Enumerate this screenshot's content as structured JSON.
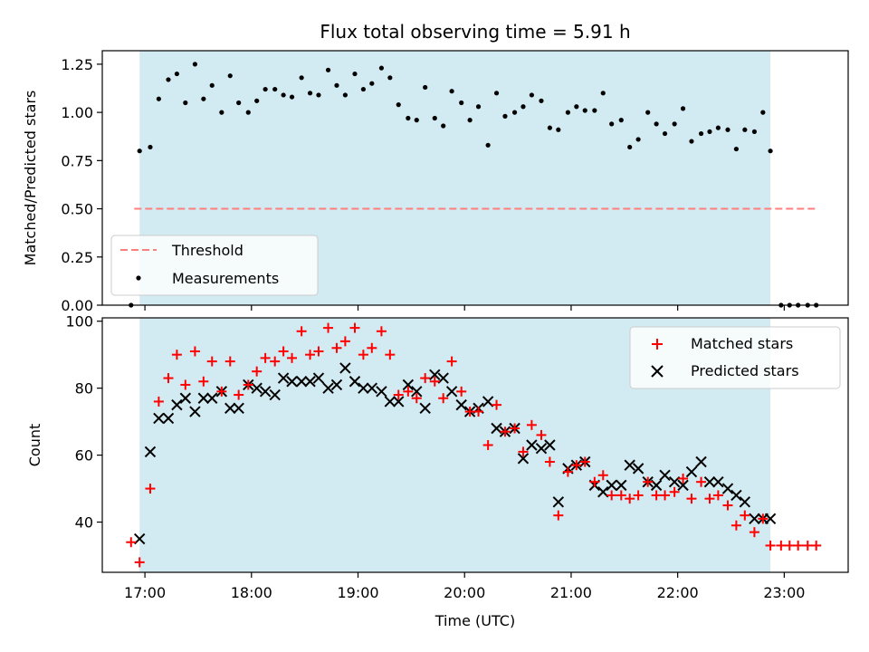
{
  "chart_data": [
    {
      "type": "scatter",
      "title": "Flux total observing time = 5.91 h",
      "ylabel": "Matched/Predicted stars",
      "xlabel": "",
      "xlim": [
        16.6,
        23.6
      ],
      "ylim": [
        0,
        1.32
      ],
      "yticks": [
        0,
        0.25,
        0.5,
        0.75,
        1.0,
        1.25
      ],
      "ytick_labels": [
        "0.00",
        "0.25",
        "0.50",
        "0.75",
        "1.00",
        "1.25"
      ],
      "shaded_interval": {
        "x": [
          16.95,
          22.87
        ],
        "color": "#add8e6"
      },
      "threshold": {
        "name": "Threshold",
        "value": 0.5,
        "x": [
          16.9,
          23.3
        ],
        "color": "#ff7f7f",
        "style": "dashed"
      },
      "legend": {
        "position": "lower-left",
        "entries": [
          "Threshold",
          "Measurements"
        ]
      },
      "series": [
        {
          "name": "Measurements",
          "marker": "dot",
          "color": "#000000",
          "x": [
            16.87,
            16.95,
            17.05,
            17.13,
            17.22,
            17.3,
            17.38,
            17.47,
            17.55,
            17.63,
            17.72,
            17.8,
            17.88,
            17.97,
            18.05,
            18.13,
            18.22,
            18.3,
            18.38,
            18.47,
            18.55,
            18.63,
            18.72,
            18.8,
            18.88,
            18.97,
            19.05,
            19.13,
            19.22,
            19.3,
            19.38,
            19.47,
            19.55,
            19.63,
            19.72,
            19.8,
            19.88,
            19.97,
            20.05,
            20.13,
            20.22,
            20.3,
            20.38,
            20.47,
            20.55,
            20.63,
            20.72,
            20.8,
            20.88,
            20.97,
            21.05,
            21.13,
            21.22,
            21.3,
            21.38,
            21.47,
            21.55,
            21.63,
            21.72,
            21.8,
            21.88,
            21.97,
            22.05,
            22.13,
            22.22,
            22.3,
            22.38,
            22.47,
            22.55,
            22.63,
            22.72,
            22.8,
            22.87,
            22.97,
            23.05,
            23.13,
            23.22,
            23.3
          ],
          "y": [
            0.0,
            0.8,
            0.82,
            1.07,
            1.17,
            1.2,
            1.05,
            1.25,
            1.07,
            1.14,
            1.0,
            1.19,
            1.05,
            1.0,
            1.06,
            1.12,
            1.12,
            1.09,
            1.08,
            1.18,
            1.1,
            1.09,
            1.22,
            1.14,
            1.09,
            1.2,
            1.12,
            1.15,
            1.23,
            1.18,
            1.04,
            0.97,
            0.96,
            1.13,
            0.97,
            0.93,
            1.11,
            1.05,
            0.96,
            1.03,
            0.83,
            1.1,
            0.98,
            1.0,
            1.03,
            1.09,
            1.06,
            0.92,
            0.91,
            1.0,
            1.03,
            1.01,
            1.01,
            1.1,
            0.94,
            0.96,
            0.82,
            0.86,
            1.0,
            0.94,
            0.89,
            0.94,
            1.02,
            0.85,
            0.89,
            0.9,
            0.92,
            0.91,
            0.81,
            0.91,
            0.9,
            1.0,
            0.8,
            0.0,
            0.0,
            0.0,
            0.0,
            0.0
          ]
        }
      ]
    },
    {
      "type": "scatter",
      "title": "",
      "ylabel": "Count",
      "xlabel": "Time (UTC)",
      "xlim": [
        16.6,
        23.6
      ],
      "ylim": [
        25,
        101
      ],
      "yticks": [
        40,
        60,
        80,
        100
      ],
      "ytick_labels": [
        "40",
        "60",
        "80",
        "100"
      ],
      "xticks": [
        17,
        18,
        19,
        20,
        21,
        22,
        23
      ],
      "xtick_labels": [
        "17:00",
        "18:00",
        "19:00",
        "20:00",
        "21:00",
        "22:00",
        "23:00"
      ],
      "shaded_interval": {
        "x": [
          16.95,
          22.87
        ],
        "color": "#add8e6"
      },
      "legend": {
        "position": "top-right",
        "entries": [
          "Matched stars",
          "Predicted stars"
        ]
      },
      "series": [
        {
          "name": "Matched stars",
          "marker": "plus",
          "color": "#ff0000",
          "x": [
            16.87,
            16.95,
            17.05,
            17.13,
            17.22,
            17.3,
            17.38,
            17.47,
            17.55,
            17.63,
            17.72,
            17.8,
            17.88,
            17.97,
            18.05,
            18.13,
            18.22,
            18.3,
            18.38,
            18.47,
            18.55,
            18.63,
            18.72,
            18.8,
            18.88,
            18.97,
            19.05,
            19.13,
            19.22,
            19.3,
            19.38,
            19.47,
            19.55,
            19.63,
            19.72,
            19.8,
            19.88,
            19.97,
            20.05,
            20.13,
            20.22,
            20.3,
            20.38,
            20.47,
            20.55,
            20.63,
            20.72,
            20.8,
            20.88,
            20.97,
            21.05,
            21.13,
            21.22,
            21.3,
            21.38,
            21.47,
            21.55,
            21.63,
            21.72,
            21.8,
            21.88,
            21.97,
            22.05,
            22.13,
            22.22,
            22.3,
            22.38,
            22.47,
            22.55,
            22.63,
            22.72,
            22.8,
            22.87,
            22.97,
            23.05,
            23.13,
            23.22,
            23.3
          ],
          "y": [
            34,
            28,
            50,
            76,
            83,
            90,
            81,
            91,
            82,
            88,
            79,
            88,
            78,
            81,
            85,
            89,
            88,
            91,
            89,
            97,
            90,
            91,
            98,
            92,
            94,
            98,
            90,
            92,
            97,
            90,
            78,
            79,
            77,
            83,
            82,
            77,
            88,
            79,
            73,
            73,
            63,
            75,
            67,
            68,
            61,
            69,
            66,
            58,
            42,
            55,
            57,
            58,
            52,
            54,
            48,
            48,
            47,
            48,
            52,
            48,
            48,
            49,
            53,
            47,
            52,
            47,
            48,
            45,
            39,
            42,
            37,
            41,
            33,
            33,
            33,
            33,
            33,
            33
          ]
        },
        {
          "name": "Predicted stars",
          "marker": "x",
          "color": "#000000",
          "x": [
            16.95,
            17.05,
            17.13,
            17.22,
            17.3,
            17.38,
            17.47,
            17.55,
            17.63,
            17.72,
            17.8,
            17.88,
            17.97,
            18.05,
            18.13,
            18.22,
            18.3,
            18.38,
            18.47,
            18.55,
            18.63,
            18.72,
            18.8,
            18.88,
            18.97,
            19.05,
            19.13,
            19.22,
            19.3,
            19.38,
            19.47,
            19.55,
            19.63,
            19.72,
            19.8,
            19.88,
            19.97,
            20.05,
            20.13,
            20.22,
            20.3,
            20.38,
            20.47,
            20.55,
            20.63,
            20.72,
            20.8,
            20.88,
            20.97,
            21.05,
            21.13,
            21.22,
            21.3,
            21.38,
            21.47,
            21.55,
            21.63,
            21.72,
            21.8,
            21.88,
            21.97,
            22.05,
            22.13,
            22.22,
            22.3,
            22.38,
            22.47,
            22.55,
            22.63,
            22.72,
            22.8,
            22.87
          ],
          "y": [
            35,
            61,
            71,
            71,
            75,
            77,
            73,
            77,
            77,
            79,
            74,
            74,
            81,
            80,
            79,
            78,
            83,
            82,
            82,
            82,
            83,
            80,
            81,
            86,
            82,
            80,
            80,
            79,
            76,
            76,
            81,
            79,
            74,
            84,
            83,
            79,
            75,
            73,
            74,
            76,
            68,
            67,
            68,
            59,
            63,
            62,
            63,
            46,
            56,
            57,
            58,
            51,
            49,
            51,
            51,
            57,
            56,
            52,
            51,
            54,
            52,
            51,
            55,
            58,
            52,
            52,
            50,
            48,
            46,
            41,
            41,
            41
          ]
        }
      ]
    }
  ]
}
